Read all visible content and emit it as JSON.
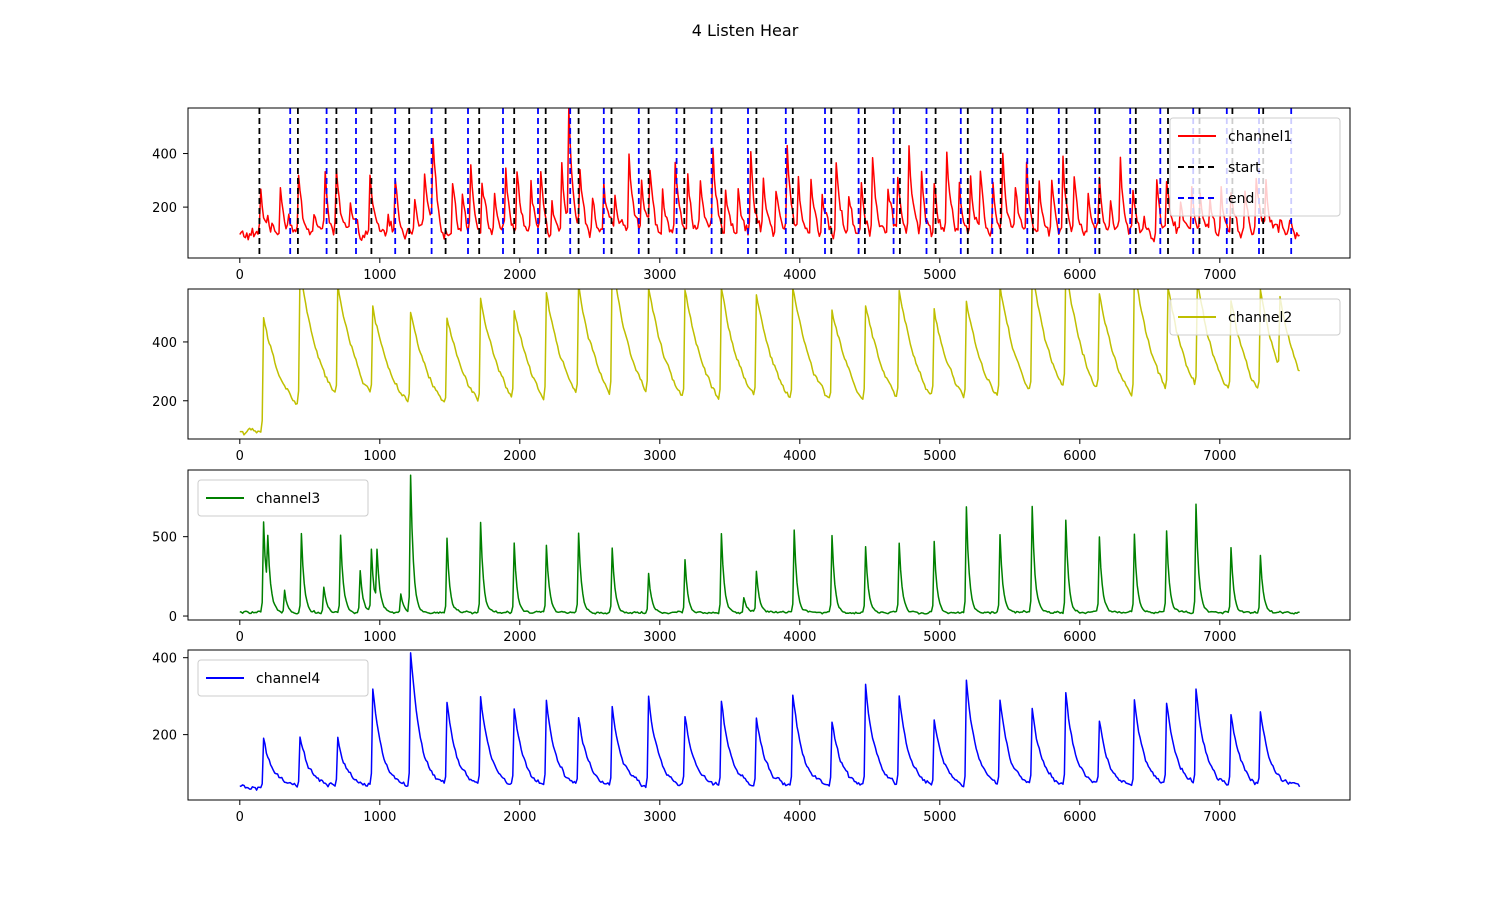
{
  "title": "4 Listen Hear",
  "chart_data": [
    {
      "type": "line",
      "xlim": [
        -370,
        7930
      ],
      "ylim": [
        10,
        570
      ],
      "x_ticks": [
        0,
        1000,
        2000,
        3000,
        4000,
        5000,
        6000,
        7000
      ],
      "y_ticks": [
        200,
        400
      ],
      "legend_position": "top-right",
      "series": [
        {
          "name": "channel1",
          "color": "#ff0000",
          "x_end": 7570,
          "baseline": 95,
          "noise": 38,
          "decay_samples": 28,
          "peaks": [
            [
              145,
              260
            ],
            [
              195,
              145
            ],
            [
              290,
              290
            ],
            [
              350,
              160
            ],
            [
              420,
              300
            ],
            [
              530,
              180
            ],
            [
              610,
              315
            ],
            [
              690,
              320
            ],
            [
              790,
              190
            ],
            [
              930,
              300
            ],
            [
              1060,
              170
            ],
            [
              1110,
              290
            ],
            [
              1250,
              210
            ],
            [
              1320,
              320
            ],
            [
              1380,
              430
            ],
            [
              1520,
              300
            ],
            [
              1590,
              240
            ],
            [
              1650,
              340
            ],
            [
              1730,
              300
            ],
            [
              1820,
              240
            ],
            [
              1900,
              320
            ],
            [
              1980,
              330
            ],
            [
              2080,
              260
            ],
            [
              2150,
              320
            ],
            [
              2230,
              220
            ],
            [
              2300,
              370
            ],
            [
              2345,
              550
            ],
            [
              2430,
              300
            ],
            [
              2520,
              230
            ],
            [
              2600,
              280
            ],
            [
              2680,
              230
            ],
            [
              2780,
              420
            ],
            [
              2870,
              280
            ],
            [
              2930,
              330
            ],
            [
              3020,
              260
            ],
            [
              3110,
              360
            ],
            [
              3200,
              330
            ],
            [
              3290,
              260
            ],
            [
              3380,
              400
            ],
            [
              3470,
              280
            ],
            [
              3560,
              280
            ],
            [
              3650,
              400
            ],
            [
              3740,
              300
            ],
            [
              3830,
              260
            ],
            [
              3910,
              400
            ],
            [
              3990,
              280
            ],
            [
              4080,
              300
            ],
            [
              4160,
              240
            ],
            [
              4260,
              370
            ],
            [
              4350,
              240
            ],
            [
              4440,
              290
            ],
            [
              4520,
              380
            ],
            [
              4630,
              260
            ],
            [
              4700,
              300
            ],
            [
              4780,
              420
            ],
            [
              4870,
              300
            ],
            [
              4960,
              280
            ],
            [
              5050,
              380
            ],
            [
              5140,
              290
            ],
            [
              5220,
              290
            ],
            [
              5290,
              320
            ],
            [
              5380,
              290
            ],
            [
              5450,
              390
            ],
            [
              5540,
              240
            ],
            [
              5620,
              370
            ],
            [
              5710,
              290
            ],
            [
              5800,
              300
            ],
            [
              5880,
              380
            ],
            [
              5960,
              290
            ],
            [
              6060,
              240
            ],
            [
              6140,
              310
            ],
            [
              6220,
              200
            ],
            [
              6290,
              360
            ],
            [
              6380,
              250
            ],
            [
              6460,
              160
            ],
            [
              6550,
              280
            ],
            [
              6620,
              300
            ],
            [
              6720,
              220
            ],
            [
              6800,
              280
            ],
            [
              6860,
              230
            ],
            [
              6930,
              200
            ],
            [
              7010,
              270
            ],
            [
              7080,
              240
            ],
            [
              7180,
              260
            ],
            [
              7260,
              300
            ],
            [
              7330,
              250
            ],
            [
              7430,
              160
            ],
            [
              7500,
              150
            ]
          ]
        }
      ],
      "vlines": [
        {
          "name": "start",
          "color": "#000000",
          "x": [
            140,
            415,
            690,
            940,
            1210,
            1470,
            1710,
            1960,
            2185,
            2420,
            2655,
            2920,
            3175,
            3440,
            3690,
            3950,
            4225,
            4465,
            4715,
            4970,
            5200,
            5435,
            5665,
            5905,
            6140,
            6400,
            6630,
            6855,
            7090,
            7310
          ]
        },
        {
          "name": "end",
          "color": "#0000ff",
          "x": [
            360,
            620,
            830,
            1110,
            1370,
            1630,
            1880,
            2130,
            2360,
            2600,
            2850,
            3120,
            3370,
            3630,
            3900,
            4180,
            4420,
            4670,
            4905,
            5150,
            5375,
            5625,
            5850,
            6110,
            6360,
            6575,
            6810,
            7050,
            7280,
            7510
          ]
        }
      ]
    },
    {
      "type": "line",
      "xlim": [
        -370,
        7930
      ],
      "ylim": [
        70,
        580
      ],
      "x_ticks": [
        0,
        1000,
        2000,
        3000,
        4000,
        5000,
        6000,
        7000
      ],
      "y_ticks": [
        200,
        400
      ],
      "legend_position": "top-right",
      "series": [
        {
          "name": "channel2",
          "color": "#bfbf00",
          "x_end": 7570,
          "baseline": 95,
          "noise": 14,
          "decay_samples": 170,
          "peaks": [
            [
              165,
              475
            ],
            [
              430,
              560
            ],
            [
              700,
              490
            ],
            [
              950,
              405
            ],
            [
              1215,
              410
            ],
            [
              1475,
              400
            ],
            [
              1715,
              450
            ],
            [
              1960,
              395
            ],
            [
              2190,
              460
            ],
            [
              2420,
              470
            ],
            [
              2660,
              555
            ],
            [
              2920,
              460
            ],
            [
              3180,
              480
            ],
            [
              3440,
              475
            ],
            [
              3690,
              455
            ],
            [
              3950,
              490
            ],
            [
              4230,
              420
            ],
            [
              4465,
              425
            ],
            [
              4710,
              465
            ],
            [
              4960,
              400
            ],
            [
              5190,
              425
            ],
            [
              5425,
              480
            ],
            [
              5660,
              510
            ],
            [
              5900,
              520
            ],
            [
              6140,
              430
            ],
            [
              6390,
              540
            ],
            [
              6630,
              455
            ],
            [
              6840,
              465
            ],
            [
              7080,
              415
            ],
            [
              7290,
              445
            ],
            [
              7430,
              345
            ]
          ]
        }
      ]
    },
    {
      "type": "line",
      "xlim": [
        -370,
        7930
      ],
      "ylim": [
        -25,
        920
      ],
      "x_ticks": [
        0,
        1000,
        2000,
        3000,
        4000,
        5000,
        6000,
        7000
      ],
      "y_ticks": [
        0,
        500
      ],
      "legend_position": "top-left",
      "series": [
        {
          "name": "channel3",
          "color": "#008000",
          "x_end": 7570,
          "baseline": 22,
          "noise": 12,
          "decay_samples": 20,
          "peaks": [
            [
              165,
              590
            ],
            [
              200,
              380
            ],
            [
              320,
              170
            ],
            [
              440,
              520
            ],
            [
              600,
              180
            ],
            [
              720,
              510
            ],
            [
              860,
              280
            ],
            [
              940,
              420
            ],
            [
              975,
              370
            ],
            [
              1150,
              140
            ],
            [
              1215,
              880
            ],
            [
              1480,
              490
            ],
            [
              1720,
              590
            ],
            [
              1960,
              460
            ],
            [
              2190,
              440
            ],
            [
              2420,
              530
            ],
            [
              2660,
              430
            ],
            [
              2920,
              270
            ],
            [
              3175,
              350
            ],
            [
              3440,
              520
            ],
            [
              3600,
              120
            ],
            [
              3690,
              280
            ],
            [
              3960,
              540
            ],
            [
              4230,
              510
            ],
            [
              4470,
              440
            ],
            [
              4710,
              460
            ],
            [
              4960,
              460
            ],
            [
              5190,
              690
            ],
            [
              5430,
              520
            ],
            [
              5660,
              690
            ],
            [
              5900,
              600
            ],
            [
              6140,
              490
            ],
            [
              6390,
              510
            ],
            [
              6620,
              530
            ],
            [
              6830,
              700
            ],
            [
              7080,
              430
            ],
            [
              7290,
              380
            ]
          ]
        }
      ]
    },
    {
      "type": "line",
      "xlim": [
        -370,
        7930
      ],
      "ylim": [
        30,
        420
      ],
      "x_ticks": [
        0,
        1000,
        2000,
        3000,
        4000,
        5000,
        6000,
        7000
      ],
      "y_ticks": [
        200,
        400
      ],
      "legend_position": "top-left",
      "series": [
        {
          "name": "channel4",
          "color": "#0000ff",
          "x_end": 7570,
          "baseline": 62,
          "noise": 9,
          "decay_samples": 70,
          "peaks": [
            [
              165,
              185
            ],
            [
              430,
              190
            ],
            [
              700,
              185
            ],
            [
              945,
              310
            ],
            [
              1215,
              410
            ],
            [
              1475,
              275
            ],
            [
              1715,
              295
            ],
            [
              1960,
              255
            ],
            [
              2190,
              280
            ],
            [
              2420,
              240
            ],
            [
              2660,
              265
            ],
            [
              2920,
              295
            ],
            [
              3180,
              240
            ],
            [
              3440,
              280
            ],
            [
              3690,
              235
            ],
            [
              3950,
              305
            ],
            [
              4230,
              230
            ],
            [
              4465,
              320
            ],
            [
              4710,
              295
            ],
            [
              4960,
              235
            ],
            [
              5190,
              335
            ],
            [
              5425,
              280
            ],
            [
              5660,
              255
            ],
            [
              5900,
              295
            ],
            [
              6140,
              230
            ],
            [
              6385,
              290
            ],
            [
              6620,
              270
            ],
            [
              6830,
              310
            ],
            [
              7080,
              245
            ],
            [
              7290,
              250
            ]
          ]
        }
      ]
    }
  ]
}
